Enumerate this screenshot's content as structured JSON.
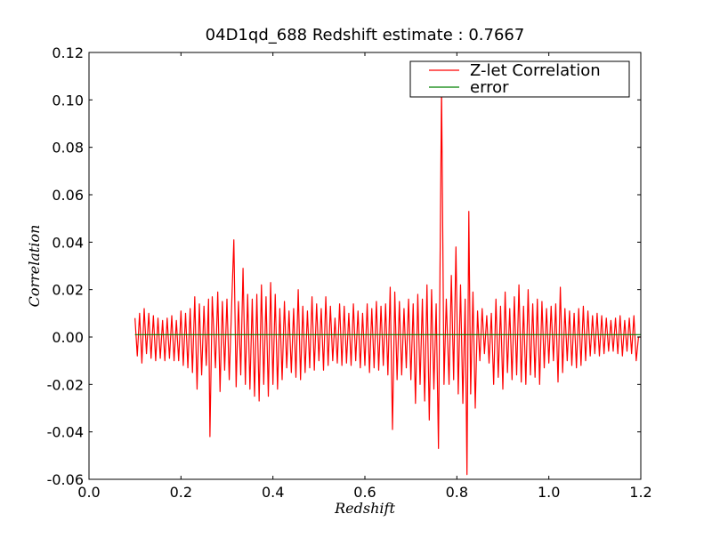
{
  "chart_data": {
    "type": "line",
    "title": "04D1qd_688 Redshift estimate : 0.7667",
    "xlabel": "Redshift",
    "ylabel": "Correlation",
    "xlim": [
      0.0,
      1.2
    ],
    "ylim": [
      -0.06,
      0.12
    ],
    "x_ticks": [
      0.0,
      0.2,
      0.4,
      0.6,
      0.8,
      1.0,
      1.2
    ],
    "x_tick_labels": [
      "0.0",
      "0.2",
      "0.4",
      "0.6",
      "0.8",
      "1.0",
      "1.2"
    ],
    "y_ticks": [
      -0.06,
      -0.04,
      -0.02,
      0.0,
      0.02,
      0.04,
      0.06,
      0.08,
      0.1,
      0.12
    ],
    "y_tick_labels": [
      "-0.06",
      "-0.04",
      "-0.02",
      "0.00",
      "0.02",
      "0.04",
      "0.06",
      "0.08",
      "0.10",
      "0.12"
    ],
    "grid": false,
    "legend_position": "top-right",
    "series": [
      {
        "name": "Z-let Correlation",
        "color": "#ff0000",
        "x_range": [
          0.1,
          1.2
        ],
        "points": [
          [
            0.1,
            0.008
          ],
          [
            0.105,
            -0.008
          ],
          [
            0.11,
            0.01
          ],
          [
            0.115,
            -0.011
          ],
          [
            0.12,
            0.012
          ],
          [
            0.125,
            -0.007
          ],
          [
            0.13,
            0.01
          ],
          [
            0.135,
            -0.009
          ],
          [
            0.14,
            0.009
          ],
          [
            0.145,
            -0.01
          ],
          [
            0.15,
            0.008
          ],
          [
            0.155,
            -0.009
          ],
          [
            0.16,
            0.007
          ],
          [
            0.165,
            -0.01
          ],
          [
            0.17,
            0.008
          ],
          [
            0.175,
            -0.009
          ],
          [
            0.18,
            0.009
          ],
          [
            0.185,
            -0.01
          ],
          [
            0.19,
            0.007
          ],
          [
            0.195,
            -0.01
          ],
          [
            0.2,
            0.011
          ],
          [
            0.205,
            -0.012
          ],
          [
            0.21,
            0.01
          ],
          [
            0.215,
            -0.013
          ],
          [
            0.22,
            0.012
          ],
          [
            0.225,
            -0.015
          ],
          [
            0.23,
            0.017
          ],
          [
            0.235,
            -0.022
          ],
          [
            0.24,
            0.014
          ],
          [
            0.245,
            -0.016
          ],
          [
            0.25,
            0.013
          ],
          [
            0.255,
            -0.012
          ],
          [
            0.26,
            0.016
          ],
          [
            0.263,
            -0.042
          ],
          [
            0.268,
            0.017
          ],
          [
            0.275,
            -0.013
          ],
          [
            0.28,
            0.019
          ],
          [
            0.285,
            -0.023
          ],
          [
            0.29,
            0.015
          ],
          [
            0.295,
            -0.014
          ],
          [
            0.3,
            0.016
          ],
          [
            0.305,
            -0.018
          ],
          [
            0.31,
            0.012
          ],
          [
            0.315,
            0.041
          ],
          [
            0.32,
            -0.021
          ],
          [
            0.325,
            0.015
          ],
          [
            0.33,
            -0.016
          ],
          [
            0.335,
            0.029
          ],
          [
            0.34,
            -0.02
          ],
          [
            0.345,
            0.018
          ],
          [
            0.35,
            -0.022
          ],
          [
            0.355,
            0.016
          ],
          [
            0.36,
            -0.025
          ],
          [
            0.365,
            0.018
          ],
          [
            0.37,
            -0.027
          ],
          [
            0.375,
            0.022
          ],
          [
            0.38,
            -0.02
          ],
          [
            0.385,
            0.017
          ],
          [
            0.39,
            -0.025
          ],
          [
            0.395,
            0.023
          ],
          [
            0.4,
            -0.02
          ],
          [
            0.405,
            0.018
          ],
          [
            0.41,
            -0.022
          ],
          [
            0.415,
            0.012
          ],
          [
            0.42,
            -0.018
          ],
          [
            0.425,
            0.015
          ],
          [
            0.43,
            -0.013
          ],
          [
            0.435,
            0.011
          ],
          [
            0.44,
            -0.015
          ],
          [
            0.445,
            0.012
          ],
          [
            0.45,
            -0.017
          ],
          [
            0.455,
            0.02
          ],
          [
            0.46,
            -0.018
          ],
          [
            0.465,
            0.013
          ],
          [
            0.47,
            -0.015
          ],
          [
            0.475,
            0.011
          ],
          [
            0.48,
            -0.013
          ],
          [
            0.485,
            0.017
          ],
          [
            0.49,
            -0.014
          ],
          [
            0.495,
            0.014
          ],
          [
            0.5,
            -0.01
          ],
          [
            0.505,
            0.012
          ],
          [
            0.51,
            -0.014
          ],
          [
            0.515,
            0.017
          ],
          [
            0.52,
            -0.012
          ],
          [
            0.525,
            0.013
          ],
          [
            0.53,
            -0.01
          ],
          [
            0.535,
            0.008
          ],
          [
            0.54,
            -0.011
          ],
          [
            0.545,
            0.014
          ],
          [
            0.55,
            -0.012
          ],
          [
            0.555,
            0.013
          ],
          [
            0.56,
            -0.011
          ],
          [
            0.565,
            0.01
          ],
          [
            0.57,
            -0.012
          ],
          [
            0.575,
            0.014
          ],
          [
            0.58,
            -0.01
          ],
          [
            0.585,
            0.011
          ],
          [
            0.59,
            -0.013
          ],
          [
            0.595,
            0.01
          ],
          [
            0.6,
            -0.012
          ],
          [
            0.605,
            0.014
          ],
          [
            0.61,
            -0.015
          ],
          [
            0.615,
            0.012
          ],
          [
            0.62,
            -0.013
          ],
          [
            0.625,
            0.015
          ],
          [
            0.63,
            -0.014
          ],
          [
            0.635,
            0.013
          ],
          [
            0.64,
            -0.012
          ],
          [
            0.645,
            0.014
          ],
          [
            0.65,
            -0.016
          ],
          [
            0.655,
            0.021
          ],
          [
            0.66,
            -0.039
          ],
          [
            0.665,
            0.019
          ],
          [
            0.67,
            -0.018
          ],
          [
            0.675,
            0.015
          ],
          [
            0.68,
            -0.016
          ],
          [
            0.685,
            0.012
          ],
          [
            0.69,
            -0.013
          ],
          [
            0.695,
            0.016
          ],
          [
            0.7,
            -0.018
          ],
          [
            0.705,
            0.014
          ],
          [
            0.71,
            -0.028
          ],
          [
            0.715,
            0.018
          ],
          [
            0.72,
            -0.02
          ],
          [
            0.725,
            0.016
          ],
          [
            0.73,
            -0.027
          ],
          [
            0.735,
            0.022
          ],
          [
            0.74,
            -0.035
          ],
          [
            0.745,
            0.02
          ],
          [
            0.75,
            -0.022
          ],
          [
            0.755,
            0.014
          ],
          [
            0.76,
            -0.047
          ],
          [
            0.7667,
            0.105
          ],
          [
            0.772,
            -0.02
          ],
          [
            0.777,
            0.016
          ],
          [
            0.783,
            -0.02
          ],
          [
            0.788,
            0.026
          ],
          [
            0.793,
            -0.018
          ],
          [
            0.798,
            0.038
          ],
          [
            0.803,
            -0.024
          ],
          [
            0.808,
            0.022
          ],
          [
            0.813,
            -0.028
          ],
          [
            0.818,
            0.016
          ],
          [
            0.822,
            -0.058
          ],
          [
            0.826,
            0.053
          ],
          [
            0.83,
            -0.024
          ],
          [
            0.835,
            0.019
          ],
          [
            0.84,
            -0.03
          ],
          [
            0.845,
            0.011
          ],
          [
            0.85,
            -0.01
          ],
          [
            0.855,
            0.012
          ],
          [
            0.86,
            -0.007
          ],
          [
            0.865,
            0.009
          ],
          [
            0.87,
            -0.011
          ],
          [
            0.875,
            0.01
          ],
          [
            0.88,
            -0.02
          ],
          [
            0.885,
            0.016
          ],
          [
            0.89,
            -0.017
          ],
          [
            0.895,
            0.013
          ],
          [
            0.9,
            -0.022
          ],
          [
            0.905,
            0.019
          ],
          [
            0.91,
            -0.015
          ],
          [
            0.915,
            0.012
          ],
          [
            0.92,
            -0.018
          ],
          [
            0.925,
            0.017
          ],
          [
            0.93,
            -0.016
          ],
          [
            0.935,
            0.022
          ],
          [
            0.94,
            -0.019
          ],
          [
            0.945,
            0.013
          ],
          [
            0.95,
            -0.02
          ],
          [
            0.955,
            0.02
          ],
          [
            0.96,
            -0.016
          ],
          [
            0.965,
            0.014
          ],
          [
            0.97,
            -0.017
          ],
          [
            0.975,
            0.016
          ],
          [
            0.98,
            -0.02
          ],
          [
            0.985,
            0.015
          ],
          [
            0.99,
            -0.013
          ],
          [
            0.995,
            0.012
          ],
          [
            1.0,
            -0.011
          ],
          [
            1.005,
            0.013
          ],
          [
            1.01,
            -0.01
          ],
          [
            1.015,
            0.014
          ],
          [
            1.02,
            -0.019
          ],
          [
            1.025,
            0.021
          ],
          [
            1.03,
            -0.015
          ],
          [
            1.035,
            0.012
          ],
          [
            1.04,
            -0.01
          ],
          [
            1.045,
            0.011
          ],
          [
            1.05,
            -0.012
          ],
          [
            1.055,
            0.01
          ],
          [
            1.06,
            -0.013
          ],
          [
            1.065,
            0.012
          ],
          [
            1.07,
            -0.012
          ],
          [
            1.075,
            0.013
          ],
          [
            1.08,
            -0.01
          ],
          [
            1.085,
            0.011
          ],
          [
            1.09,
            -0.008
          ],
          [
            1.095,
            0.009
          ],
          [
            1.1,
            -0.007
          ],
          [
            1.105,
            0.01
          ],
          [
            1.11,
            -0.008
          ],
          [
            1.115,
            0.009
          ],
          [
            1.12,
            -0.007
          ],
          [
            1.125,
            0.008
          ],
          [
            1.13,
            -0.006
          ],
          [
            1.135,
            0.007
          ],
          [
            1.14,
            -0.006
          ],
          [
            1.145,
            0.008
          ],
          [
            1.15,
            -0.007
          ],
          [
            1.155,
            0.009
          ],
          [
            1.16,
            -0.008
          ],
          [
            1.165,
            0.007
          ],
          [
            1.17,
            -0.006
          ],
          [
            1.175,
            0.008
          ],
          [
            1.18,
            -0.007
          ],
          [
            1.185,
            0.009
          ],
          [
            1.19,
            -0.01
          ],
          [
            1.195,
            0.0
          ],
          [
            1.2,
            0.0
          ]
        ]
      },
      {
        "name": "error",
        "color": "#008000",
        "x_range": [
          0.1,
          1.2
        ],
        "value": 0.001
      }
    ],
    "marker": {
      "x": 0.7667,
      "y": 0.105,
      "shape": "triangle-down"
    }
  }
}
